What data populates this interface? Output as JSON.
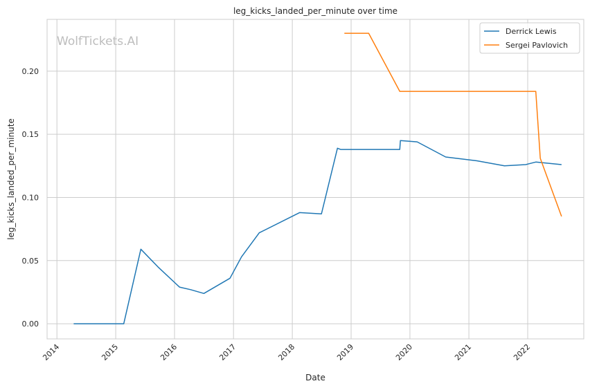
{
  "chart_data": {
    "type": "line",
    "title": "leg_kicks_landed_per_minute over time",
    "xlabel": "Date",
    "ylabel": "leg_kicks_landed_per_minute",
    "watermark": "WolfTickets.AI",
    "grid": true,
    "legend_position": "top-right",
    "x_type": "date",
    "xlim": [
      "2013-11-01",
      "2022-12-15"
    ],
    "ylim": [
      -0.012,
      0.241
    ],
    "x_ticks": [
      "2014-01-01",
      "2015-01-01",
      "2016-01-01",
      "2017-01-01",
      "2018-01-01",
      "2019-01-01",
      "2020-01-01",
      "2021-01-01",
      "2022-01-01"
    ],
    "x_tick_labels": [
      "2014",
      "2015",
      "2016",
      "2017",
      "2018",
      "2019",
      "2020",
      "2021",
      "2022"
    ],
    "y_ticks": [
      0.0,
      0.05,
      0.1,
      0.15,
      0.2
    ],
    "y_tick_labels": [
      "0.00",
      "0.05",
      "0.10",
      "0.15",
      "0.20"
    ],
    "series": [
      {
        "name": "Derrick Lewis",
        "color": "#1f77b4",
        "points": [
          [
            "2014-04-15",
            0.0
          ],
          [
            "2015-02-20",
            0.0
          ],
          [
            "2015-06-06",
            0.059
          ],
          [
            "2015-09-20",
            0.045
          ],
          [
            "2016-02-01",
            0.029
          ],
          [
            "2016-04-10",
            0.027
          ],
          [
            "2016-07-01",
            0.024
          ],
          [
            "2016-12-10",
            0.036
          ],
          [
            "2017-02-20",
            0.053
          ],
          [
            "2017-06-10",
            0.072
          ],
          [
            "2018-02-15",
            0.088
          ],
          [
            "2018-07-01",
            0.087
          ],
          [
            "2018-10-08",
            0.139
          ],
          [
            "2018-10-28",
            0.138
          ],
          [
            "2019-10-30",
            0.138
          ],
          [
            "2019-11-03",
            0.145
          ],
          [
            "2020-02-15",
            0.144
          ],
          [
            "2020-08-10",
            0.132
          ],
          [
            "2021-02-20",
            0.129
          ],
          [
            "2021-08-10",
            0.125
          ],
          [
            "2021-12-20",
            0.126
          ],
          [
            "2022-02-20",
            0.128
          ],
          [
            "2022-07-30",
            0.126
          ]
        ]
      },
      {
        "name": "Sergei Pavlovich",
        "color": "#ff7f0e",
        "points": [
          [
            "2018-11-20",
            0.23
          ],
          [
            "2019-04-20",
            0.23
          ],
          [
            "2019-10-30",
            0.184
          ],
          [
            "2022-02-20",
            0.184
          ],
          [
            "2022-03-20",
            0.131
          ],
          [
            "2022-07-30",
            0.085
          ]
        ]
      }
    ]
  }
}
